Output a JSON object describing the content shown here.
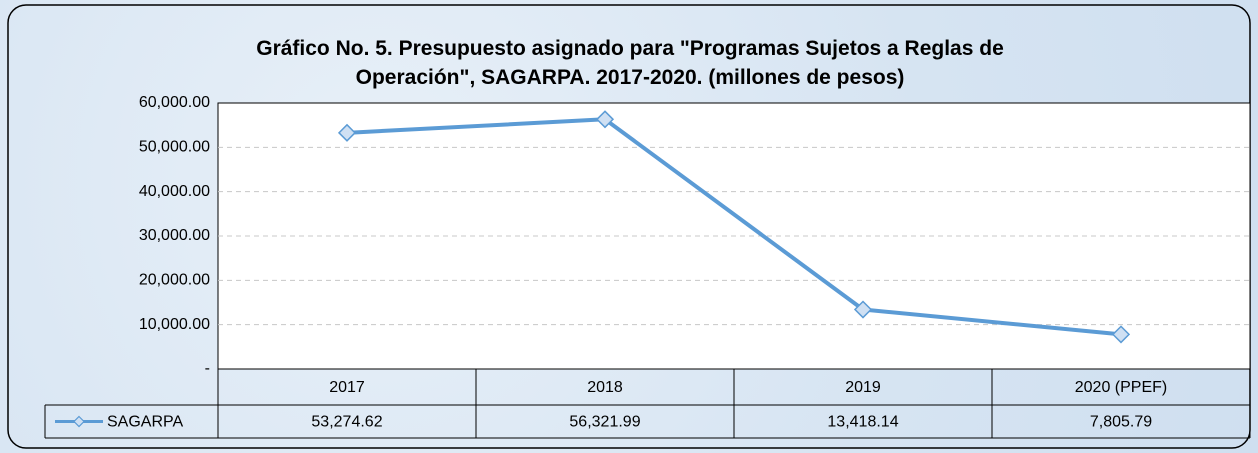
{
  "chart_data": {
    "type": "line",
    "title": "Gráfico No. 5. Presupuesto asignado para \"Programas Sujetos a Reglas de Operación\", SAGARPA. 2017-2020. (millones de pesos)",
    "categories": [
      "2017",
      "2018",
      "2019",
      "2020 (PPEF)"
    ],
    "series": [
      {
        "name": "SAGARPA",
        "color": "#5b9bd5",
        "values": [
          53274.62,
          56321.99,
          13418.14,
          7805.79
        ],
        "value_labels": [
          "53,274.62",
          "56,321.99",
          "13,418.14",
          "7,805.79"
        ]
      }
    ],
    "ylim": [
      0,
      60000
    ],
    "yticks": [
      {
        "value": 0,
        "label": "-"
      },
      {
        "value": 10000,
        "label": "10,000.00"
      },
      {
        "value": 20000,
        "label": "20,000.00"
      },
      {
        "value": 30000,
        "label": "30,000.00"
      },
      {
        "value": 40000,
        "label": "40,000.00"
      },
      {
        "value": 50000,
        "label": "50,000.00"
      },
      {
        "value": 60000,
        "label": "60,000.00"
      }
    ],
    "grid": true
  }
}
